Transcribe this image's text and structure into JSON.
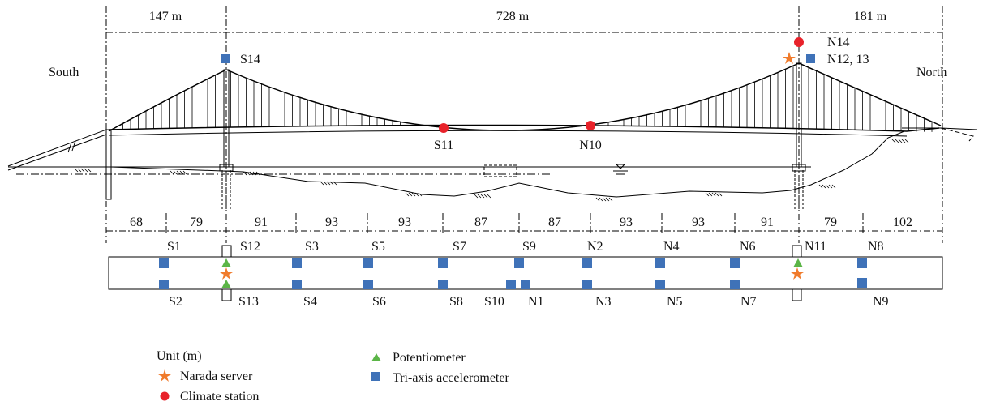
{
  "colors": {
    "accelerometer": "#3f72b8",
    "climate_station": "#e8222a",
    "narada_server": "#f07b2c",
    "potentiometer": "#5bb547",
    "line": "#000000"
  },
  "top_spans": [
    "147 m",
    "728 m",
    "181 m"
  ],
  "ends": {
    "left": "South",
    "right": "North"
  },
  "bottom_spans": [
    "68",
    "79",
    "91",
    "93",
    "93",
    "87",
    "87",
    "93",
    "93",
    "91",
    "79",
    "102"
  ],
  "elevation_sensors": {
    "S14": "S14",
    "N14": "N14",
    "N12_13": "N12, 13",
    "S11": "S11",
    "N10": "N10"
  },
  "deck_labels_top": [
    "S1",
    "S12",
    "S3",
    "S5",
    "S7",
    "S9",
    "N2",
    "N4",
    "N6",
    "N11",
    "N8"
  ],
  "deck_labels_bottom": [
    "S2",
    "S13",
    "S4",
    "S6",
    "S8",
    "S10",
    "N1",
    "N3",
    "N5",
    "N7",
    "N9"
  ],
  "legend": {
    "unit": "Unit (m)",
    "narada_server": "Narada server",
    "climate_station": "Climate station",
    "potentiometer": "Potentiometer",
    "accelerometer": "Tri-axis accelerometer"
  },
  "icons": {
    "accelerometer": "blue-square-icon",
    "climate_station": "red-circle-icon",
    "narada_server": "orange-star-icon",
    "potentiometer": "green-triangle-icon"
  }
}
